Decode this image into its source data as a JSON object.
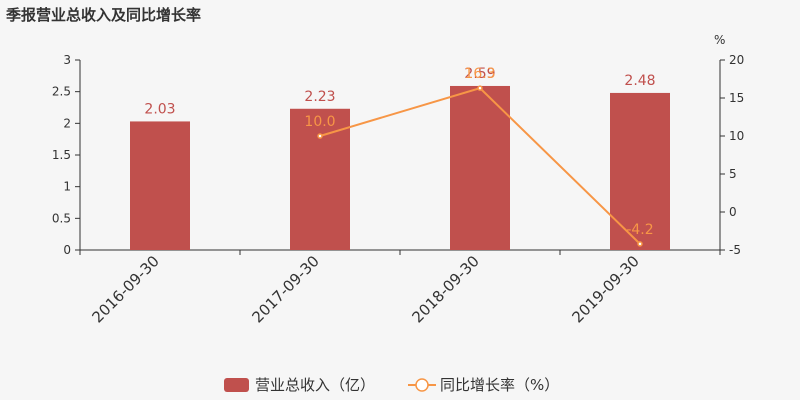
{
  "chart_data": {
    "type": "bar",
    "title": "季报营业总收入及同比增长率",
    "categories": [
      "2016-09-30",
      "2017-09-30",
      "2018-09-30",
      "2019-09-30"
    ],
    "series": [
      {
        "name": "营业总收入（亿）",
        "type": "bar",
        "axis": "left",
        "values": [
          2.03,
          2.23,
          2.59,
          2.48
        ],
        "labels": [
          "2.03",
          "2.23",
          "2.59",
          "2.48"
        ],
        "color": "#c0504d"
      },
      {
        "name": "同比增长率（%）",
        "type": "line",
        "axis": "right",
        "values": [
          null,
          10.0,
          16.3,
          -4.2
        ],
        "labels": [
          "",
          "10.0",
          "16.3",
          "-4.2"
        ],
        "color": "#f79646"
      }
    ],
    "y_left": {
      "range": [
        0,
        3
      ],
      "ticks": [
        "0",
        "0.5",
        "1",
        "1.5",
        "2",
        "2.5",
        "3"
      ]
    },
    "y_right": {
      "unit": "%",
      "range": [
        -5,
        20
      ],
      "ticks": [
        "-5",
        "0",
        "5",
        "10",
        "15",
        "20"
      ]
    },
    "grid": false,
    "legend": "bottom-center"
  }
}
